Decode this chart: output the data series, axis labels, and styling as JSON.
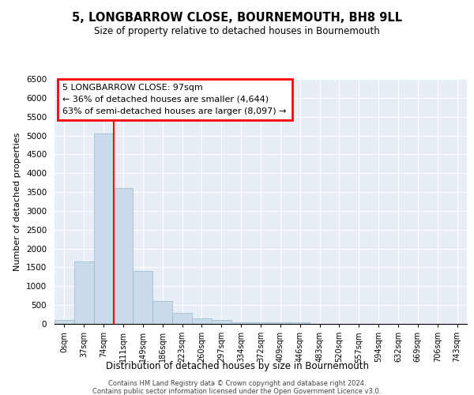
{
  "title": "5, LONGBARROW CLOSE, BOURNEMOUTH, BH8 9LL",
  "subtitle": "Size of property relative to detached houses in Bournemouth",
  "xlabel": "Distribution of detached houses by size in Bournemouth",
  "ylabel": "Number of detached properties",
  "bar_labels": [
    "0sqm",
    "37sqm",
    "74sqm",
    "111sqm",
    "149sqm",
    "186sqm",
    "223sqm",
    "260sqm",
    "297sqm",
    "334sqm",
    "372sqm",
    "409sqm",
    "446sqm",
    "483sqm",
    "520sqm",
    "557sqm",
    "594sqm",
    "632sqm",
    "669sqm",
    "706sqm",
    "743sqm"
  ],
  "bar_values": [
    100,
    1650,
    5050,
    3600,
    1400,
    600,
    300,
    150,
    100,
    50,
    50,
    50,
    50,
    0,
    0,
    0,
    0,
    0,
    0,
    0,
    0
  ],
  "bar_color": "#c9daea",
  "bar_edge_color": "#9ab8cc",
  "annotation_text": "5 LONGBARROW CLOSE: 97sqm\n← 36% of detached houses are smaller (4,644)\n63% of semi-detached houses are larger (8,097) →",
  "annotation_box_color": "white",
  "annotation_box_edge": "red",
  "ylim": [
    0,
    6500
  ],
  "yticks": [
    0,
    500,
    1000,
    1500,
    2000,
    2500,
    3000,
    3500,
    4000,
    4500,
    5000,
    5500,
    6000,
    6500
  ],
  "background_color": "#e8eef6",
  "grid_color": "white",
  "red_line_bin_index": 2,
  "footer1": "Contains HM Land Registry data © Crown copyright and database right 2024.",
  "footer2": "Contains public sector information licensed under the Open Government Licence v3.0."
}
